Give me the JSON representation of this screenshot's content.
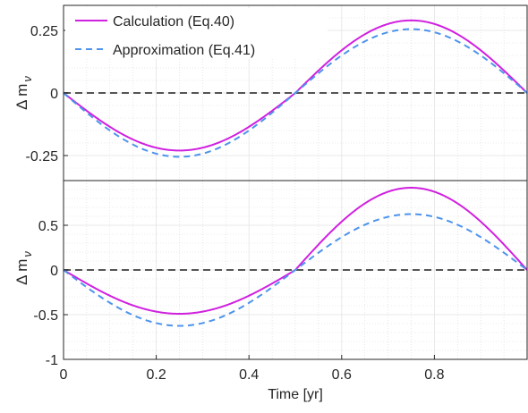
{
  "chart_data": [
    {
      "type": "line",
      "panel": "top",
      "ylabel": "Δ m",
      "ylabel_sub": "ν",
      "xlim": [
        0,
        1
      ],
      "ylim": [
        -0.35,
        0.35
      ],
      "yticks": [
        0.25,
        0,
        -0.25
      ],
      "ytick_labels": [
        "0.25",
        "0",
        "-0.25"
      ],
      "grid": true,
      "minor_grid": true,
      "legend": {
        "position": "top-left",
        "entries": [
          "Calculation (Eq.40)",
          "Approximation (Eq.41)"
        ]
      },
      "series": [
        {
          "name": "Calculation (Eq.40)",
          "style": "solid",
          "color": "#d020e0",
          "amp_neg": 0.23,
          "amp_pos": 0.29,
          "formula": "-A*sin(2*pi*t)"
        },
        {
          "name": "Approximation (Eq.41)",
          "style": "dashed",
          "color": "#4d94ec",
          "amp_neg": 0.255,
          "amp_pos": 0.255,
          "formula": "-A*sin(2*pi*t)"
        }
      ],
      "reference_line": {
        "y": 0,
        "style": "dashed",
        "color": "#555555"
      }
    },
    {
      "type": "line",
      "panel": "bottom",
      "ylabel": "Δ m",
      "ylabel_sub": "ν",
      "xlabel": "Time [yr]",
      "xlim": [
        0,
        1
      ],
      "ylim": [
        -1,
        1
      ],
      "xticks": [
        0,
        0.2,
        0.4,
        0.6,
        0.8
      ],
      "xtick_labels": [
        "0",
        "0.2",
        "0.4",
        "0.6",
        "0.8"
      ],
      "yticks": [
        0.5,
        0,
        -0.5,
        -1
      ],
      "ytick_labels": [
        "0.5",
        "0",
        "-0.5",
        "-1"
      ],
      "grid": true,
      "minor_grid": true,
      "series": [
        {
          "name": "Calculation (Eq.40)",
          "style": "solid",
          "color": "#d020e0",
          "amp_neg": 0.49,
          "amp_pos": 0.92
        },
        {
          "name": "Approximation (Eq.41)",
          "style": "dashed",
          "color": "#4d94ec",
          "amp_neg": 0.625,
          "amp_pos": 0.625
        }
      ],
      "reference_line": {
        "y": 0,
        "style": "dashed",
        "color": "#555555"
      }
    }
  ]
}
